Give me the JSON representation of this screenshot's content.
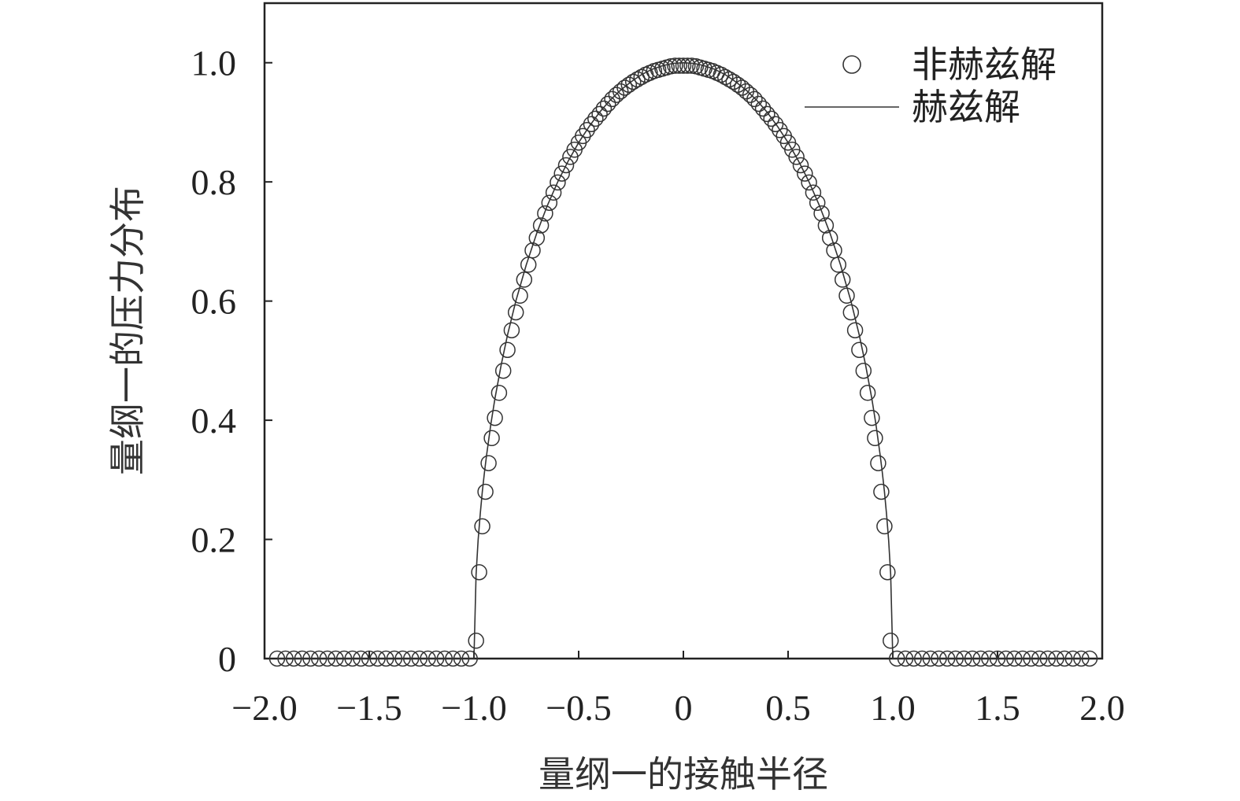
{
  "chart_data": {
    "type": "scatter",
    "xlabel": "量纲一的接触半径",
    "ylabel": "量纲一的压力分布",
    "xlim": [
      -2.0,
      2.0
    ],
    "ylim": [
      0,
      1.1
    ],
    "x_ticks": [
      -2.0,
      -1.5,
      -1.0,
      -0.5,
      0,
      0.5,
      1.0,
      1.5,
      2.0
    ],
    "x_tick_labels": [
      "−2.0",
      "−1.5",
      "−1.0",
      "−0.5",
      "0",
      "0.5",
      "1.0",
      "1.5",
      "2.0"
    ],
    "y_ticks": [
      0,
      0.2,
      0.4,
      0.6,
      0.8,
      1.0
    ],
    "y_tick_labels": [
      "0",
      "0.2",
      "0.4",
      "0.6",
      "0.8",
      "1.0"
    ],
    "grid": false,
    "legend_position": "top-right",
    "series": [
      {
        "name": "非赫兹解",
        "marker": "open-circle",
        "color": "#333333",
        "x": [
          -1.94,
          -1.9,
          -1.86,
          -1.82,
          -1.78,
          -1.74,
          -1.7,
          -1.66,
          -1.62,
          -1.58,
          -1.54,
          -1.5,
          -1.46,
          -1.42,
          -1.38,
          -1.34,
          -1.3,
          -1.26,
          -1.22,
          -1.18,
          -1.14,
          -1.1,
          -1.06,
          -1.02,
          -0.99,
          -0.975,
          -0.96,
          -0.945,
          -0.93,
          -0.915,
          -0.9,
          -0.88,
          -0.86,
          -0.84,
          -0.82,
          -0.8,
          -0.78,
          -0.76,
          -0.74,
          -0.72,
          -0.7,
          -0.68,
          -0.66,
          -0.64,
          -0.62,
          -0.6,
          -0.58,
          -0.56,
          -0.54,
          -0.52,
          -0.5,
          -0.48,
          -0.46,
          -0.44,
          -0.42,
          -0.4,
          -0.38,
          -0.36,
          -0.34,
          -0.32,
          -0.3,
          -0.28,
          -0.26,
          -0.24,
          -0.22,
          -0.2,
          -0.18,
          -0.16,
          -0.14,
          -0.12,
          -0.1,
          -0.08,
          -0.06,
          -0.04,
          -0.02,
          0,
          0.02,
          0.04,
          0.06,
          0.08,
          0.1,
          0.12,
          0.14,
          0.16,
          0.18,
          0.2,
          0.22,
          0.24,
          0.26,
          0.28,
          0.3,
          0.32,
          0.34,
          0.36,
          0.38,
          0.4,
          0.42,
          0.44,
          0.46,
          0.48,
          0.5,
          0.52,
          0.54,
          0.56,
          0.58,
          0.6,
          0.62,
          0.64,
          0.66,
          0.68,
          0.7,
          0.72,
          0.74,
          0.76,
          0.78,
          0.8,
          0.82,
          0.84,
          0.86,
          0.88,
          0.9,
          0.915,
          0.93,
          0.945,
          0.96,
          0.975,
          0.99,
          1.02,
          1.06,
          1.1,
          1.14,
          1.18,
          1.22,
          1.26,
          1.3,
          1.34,
          1.38,
          1.42,
          1.46,
          1.5,
          1.54,
          1.58,
          1.62,
          1.66,
          1.7,
          1.74,
          1.78,
          1.82,
          1.86,
          1.9,
          1.94
        ],
        "y": [
          0,
          0,
          0,
          0,
          0,
          0,
          0,
          0,
          0,
          0,
          0,
          0,
          0,
          0,
          0,
          0,
          0,
          0,
          0,
          0,
          0,
          0,
          0,
          0,
          0.03,
          0.145,
          0.222,
          0.28,
          0.328,
          0.37,
          0.404,
          0.446,
          0.483,
          0.518,
          0.551,
          0.581,
          0.609,
          0.636,
          0.661,
          0.685,
          0.706,
          0.727,
          0.747,
          0.765,
          0.782,
          0.799,
          0.814,
          0.828,
          0.842,
          0.854,
          0.866,
          0.877,
          0.887,
          0.897,
          0.906,
          0.914,
          0.923,
          0.931,
          0.939,
          0.946,
          0.952,
          0.958,
          0.963,
          0.968,
          0.972,
          0.976,
          0.98,
          0.983,
          0.986,
          0.988,
          0.99,
          0.992,
          0.994,
          0.995,
          0.995,
          0.995,
          0.995,
          0.995,
          0.994,
          0.992,
          0.99,
          0.988,
          0.986,
          0.983,
          0.98,
          0.976,
          0.972,
          0.968,
          0.963,
          0.958,
          0.952,
          0.946,
          0.939,
          0.931,
          0.923,
          0.914,
          0.906,
          0.897,
          0.887,
          0.877,
          0.866,
          0.854,
          0.842,
          0.828,
          0.814,
          0.799,
          0.782,
          0.765,
          0.747,
          0.727,
          0.706,
          0.685,
          0.661,
          0.636,
          0.609,
          0.581,
          0.551,
          0.518,
          0.483,
          0.446,
          0.404,
          0.37,
          0.328,
          0.28,
          0.222,
          0.145,
          0.03,
          0,
          0,
          0,
          0,
          0,
          0,
          0,
          0,
          0,
          0,
          0,
          0,
          0,
          0,
          0,
          0,
          0,
          0,
          0,
          0,
          0,
          0,
          0,
          0
        ]
      },
      {
        "name": "赫兹解",
        "marker": "line",
        "color": "#333333",
        "x": [
          -1.94,
          -1.0,
          -0.99,
          -0.98,
          -0.97,
          -0.96,
          -0.95,
          -0.94,
          -0.92,
          -0.9,
          -0.87,
          -0.84,
          -0.8,
          -0.75,
          -0.7,
          -0.65,
          -0.6,
          -0.55,
          -0.5,
          -0.45,
          -0.4,
          -0.35,
          -0.3,
          -0.25,
          -0.2,
          -0.15,
          -0.1,
          -0.05,
          0,
          0.05,
          0.1,
          0.15,
          0.2,
          0.25,
          0.3,
          0.35,
          0.4,
          0.45,
          0.5,
          0.55,
          0.6,
          0.65,
          0.7,
          0.75,
          0.8,
          0.84,
          0.87,
          0.9,
          0.92,
          0.94,
          0.95,
          0.96,
          0.97,
          0.98,
          0.99,
          1.0,
          1.94
        ],
        "y": [
          0,
          0,
          0.141,
          0.199,
          0.243,
          0.28,
          0.312,
          0.341,
          0.392,
          0.436,
          0.493,
          0.543,
          0.6,
          0.661,
          0.714,
          0.76,
          0.8,
          0.835,
          0.866,
          0.893,
          0.917,
          0.937,
          0.954,
          0.968,
          0.98,
          0.989,
          0.995,
          0.999,
          1.0,
          0.999,
          0.995,
          0.989,
          0.98,
          0.968,
          0.954,
          0.937,
          0.917,
          0.893,
          0.866,
          0.835,
          0.8,
          0.76,
          0.714,
          0.661,
          0.6,
          0.543,
          0.493,
          0.436,
          0.392,
          0.341,
          0.312,
          0.28,
          0.243,
          0.199,
          0.141,
          0,
          0
        ]
      }
    ]
  }
}
